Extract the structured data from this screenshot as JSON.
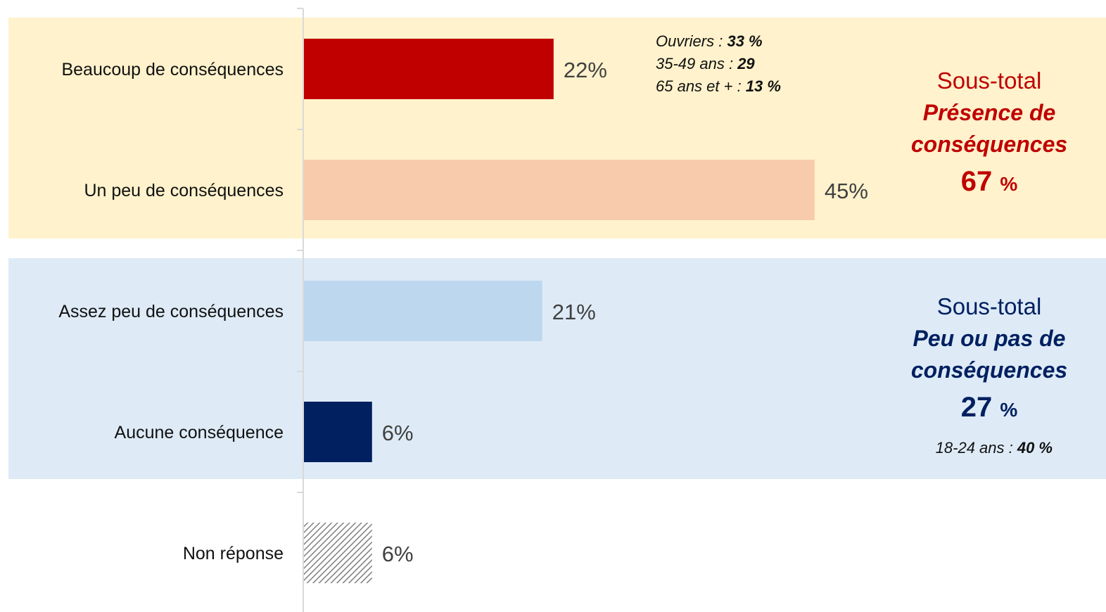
{
  "chart_data": {
    "type": "bar",
    "orientation": "horizontal",
    "categories": [
      "Beaucoup de conséquences",
      "Un peu de conséquences",
      "Assez peu de conséquences",
      "Aucune conséquence",
      "Non réponse"
    ],
    "values": [
      22,
      45,
      21,
      6,
      6
    ],
    "value_labels": [
      "22%",
      "45%",
      "21%",
      "6%",
      "6%"
    ],
    "bar_colors": [
      "#c00000",
      "#f8cbad",
      "#bdd7ee",
      "#002060",
      "hatched-gray"
    ],
    "xlim": [
      0,
      100
    ],
    "grid": false,
    "groups": [
      {
        "band_color": "#fff2cc",
        "members": [
          0,
          1
        ],
        "title": "Sous-total",
        "subtitle_lines": [
          "Présence de",
          "conséquences"
        ],
        "value": "67",
        "pct": "%",
        "color": "#c00000"
      },
      {
        "band_color": "#deebf7",
        "members": [
          2,
          3
        ],
        "title": "Sous-total",
        "subtitle_lines": [
          "Peu ou pas de",
          "conséquences"
        ],
        "value": "27",
        "pct": "%",
        "color": "#002060"
      }
    ],
    "annotations": [
      {
        "lines": [
          {
            "label": "Ouvriers : ",
            "value": "33 %"
          },
          {
            "label": "35-49 ans : ",
            "value": "29"
          },
          {
            "label": "65 ans et + : ",
            "value": "13 %"
          }
        ]
      },
      {
        "lines": [
          {
            "label": "18-24 ans : ",
            "value": "40 %"
          }
        ]
      }
    ]
  }
}
